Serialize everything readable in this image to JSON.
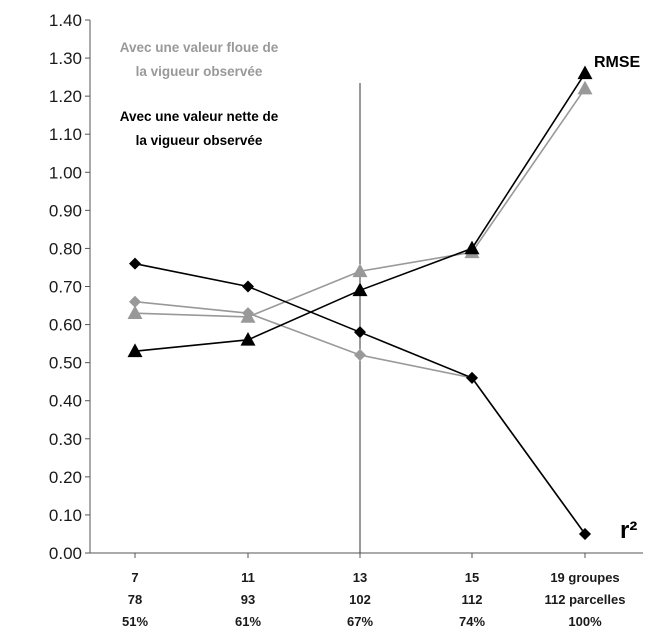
{
  "chart_data": {
    "type": "line",
    "categories": [
      [
        "7",
        "78",
        "51%"
      ],
      [
        "11",
        "93",
        "61%"
      ],
      [
        "13",
        "102",
        "67%"
      ],
      [
        "15",
        "112",
        "74%"
      ],
      [
        "19 groupes",
        "112 parcelles",
        "100%"
      ]
    ],
    "ylim": [
      0,
      1.4
    ],
    "yticks": [
      "0.00",
      "0.10",
      "0.20",
      "0.30",
      "0.40",
      "0.50",
      "0.60",
      "0.70",
      "0.80",
      "0.90",
      "1.00",
      "1.10",
      "1.20",
      "1.30",
      "1.40"
    ],
    "grid": false,
    "vertical_marker_category_index": 2,
    "legend": [
      {
        "lines": [
          "Avec une valeur floue de",
          "la vigueur observée"
        ],
        "color": "#999999"
      },
      {
        "lines": [
          "Avec une valeur nette de",
          "la vigueur observée"
        ],
        "color": "#000000"
      }
    ],
    "series_labels": {
      "rmse": "RMSE",
      "r2": "r²"
    },
    "series": [
      {
        "variant": "floue",
        "metric": "rmse",
        "color": "#999999",
        "marker": "triangle",
        "values": [
          0.63,
          0.62,
          0.74,
          0.79,
          1.22
        ]
      },
      {
        "variant": "floue",
        "metric": "r2",
        "color": "#999999",
        "marker": "diamond",
        "values": [
          0.66,
          0.63,
          0.52,
          0.46,
          0.05
        ]
      },
      {
        "variant": "nette",
        "metric": "rmse",
        "color": "#000000",
        "marker": "triangle",
        "values": [
          0.53,
          0.56,
          0.69,
          0.8,
          1.26
        ]
      },
      {
        "variant": "nette",
        "metric": "r2",
        "color": "#000000",
        "marker": "diamond",
        "values": [
          0.76,
          0.7,
          0.58,
          0.46,
          0.05
        ]
      }
    ]
  }
}
